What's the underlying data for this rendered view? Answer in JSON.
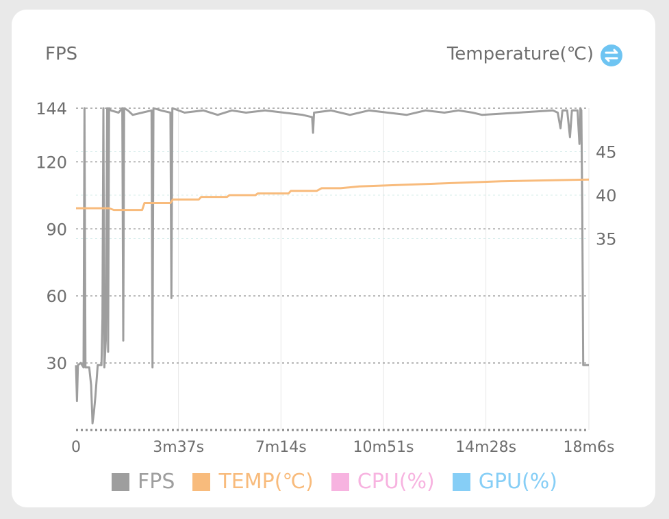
{
  "header": {
    "left_label": "FPS",
    "right_label": "Temperature(℃)",
    "swap_icon": "swap-axis-icon"
  },
  "colors": {
    "fps": "#9e9e9e",
    "temp": "#f8bb7c",
    "cpu": "#f7b3e0",
    "gpu": "#86cef6",
    "grid": "#9a9a9a",
    "axis_text": "#6e6e6e",
    "swap_button": "#6ec4f2"
  },
  "legend": [
    {
      "label": "FPS",
      "color": "#9e9e9e"
    },
    {
      "label": "TEMP(℃)",
      "color": "#f8bb7c"
    },
    {
      "label": "CPU(%)",
      "color": "#f7b3e0"
    },
    {
      "label": "GPU(%)",
      "color": "#86cef6"
    }
  ],
  "chart_data": {
    "type": "line",
    "title": "",
    "xlabel": "",
    "ylabel": "FPS",
    "y2label": "Temperature(℃)",
    "x_unit": "seconds",
    "xlim": [
      0,
      1086
    ],
    "ylim": [
      0,
      144
    ],
    "y2lim": [
      13,
      50
    ],
    "x_ticks": [
      0,
      217,
      434,
      651,
      868,
      1086
    ],
    "x_tick_labels": [
      "0",
      "3m37s",
      "7m14s",
      "10m51s",
      "14m28s",
      "18m6s"
    ],
    "y_ticks": [
      30,
      60,
      90,
      120,
      144
    ],
    "y2_ticks": [
      35,
      40,
      45
    ],
    "grid": "dotted horizontal, solid vertical",
    "legend_position": "bottom",
    "series": [
      {
        "name": "FPS",
        "axis": "left",
        "points": [
          [
            0,
            29
          ],
          [
            2,
            13
          ],
          [
            4,
            29
          ],
          [
            10,
            30
          ],
          [
            16,
            28
          ],
          [
            18,
            144
          ],
          [
            20,
            28
          ],
          [
            28,
            28
          ],
          [
            32,
            20
          ],
          [
            35,
            3
          ],
          [
            38,
            8
          ],
          [
            41,
            15
          ],
          [
            46,
            29
          ],
          [
            54,
            29
          ],
          [
            56,
            50
          ],
          [
            58,
            144
          ],
          [
            60,
            28
          ],
          [
            63,
            40
          ],
          [
            66,
            144
          ],
          [
            68,
            35
          ],
          [
            70,
            144
          ],
          [
            74,
            143
          ],
          [
            90,
            142
          ],
          [
            98,
            144
          ],
          [
            100,
            40
          ],
          [
            102,
            144
          ],
          [
            110,
            143
          ],
          [
            120,
            141
          ],
          [
            140,
            142
          ],
          [
            160,
            143
          ],
          [
            162,
            28
          ],
          [
            164,
            144
          ],
          [
            180,
            143
          ],
          [
            200,
            142
          ],
          [
            202,
            59
          ],
          [
            204,
            144
          ],
          [
            230,
            142
          ],
          [
            270,
            143
          ],
          [
            300,
            141
          ],
          [
            330,
            143
          ],
          [
            360,
            142
          ],
          [
            400,
            143
          ],
          [
            440,
            142
          ],
          [
            480,
            141
          ],
          [
            500,
            140
          ],
          [
            502,
            133
          ],
          [
            504,
            142
          ],
          [
            540,
            143
          ],
          [
            580,
            141
          ],
          [
            620,
            143
          ],
          [
            660,
            142
          ],
          [
            700,
            141
          ],
          [
            740,
            143
          ],
          [
            780,
            142
          ],
          [
            810,
            143
          ],
          [
            840,
            142
          ],
          [
            860,
            141
          ],
          [
            1010,
            143
          ],
          [
            1020,
            142
          ],
          [
            1026,
            135
          ],
          [
            1030,
            143
          ],
          [
            1040,
            143
          ],
          [
            1046,
            131
          ],
          [
            1050,
            143
          ],
          [
            1062,
            143
          ],
          [
            1066,
            128
          ],
          [
            1068,
            144
          ],
          [
            1070,
            143
          ],
          [
            1072,
            100
          ],
          [
            1074,
            29
          ],
          [
            1080,
            29
          ],
          [
            1086,
            29
          ]
        ]
      },
      {
        "name": "TEMP(℃)",
        "axis": "right",
        "points": [
          [
            0,
            38.5
          ],
          [
            70,
            38.5
          ],
          [
            80,
            38.3
          ],
          [
            140,
            38.3
          ],
          [
            145,
            39.1
          ],
          [
            200,
            39.1
          ],
          [
            205,
            39.5
          ],
          [
            260,
            39.5
          ],
          [
            265,
            39.8
          ],
          [
            320,
            39.8
          ],
          [
            325,
            40.0
          ],
          [
            380,
            40.0
          ],
          [
            385,
            40.2
          ],
          [
            450,
            40.2
          ],
          [
            455,
            40.5
          ],
          [
            510,
            40.5
          ],
          [
            520,
            40.8
          ],
          [
            560,
            40.8
          ],
          [
            600,
            41.0
          ],
          [
            700,
            41.2
          ],
          [
            800,
            41.4
          ],
          [
            900,
            41.6
          ],
          [
            1000,
            41.7
          ],
          [
            1086,
            41.8
          ]
        ]
      }
    ]
  }
}
